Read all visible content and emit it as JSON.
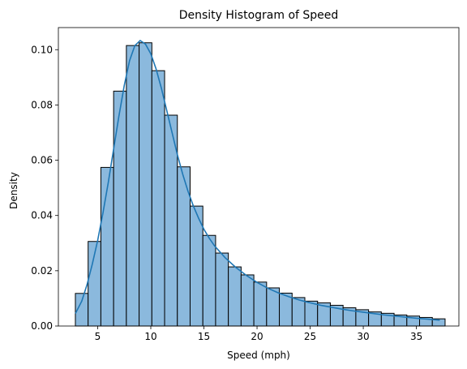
{
  "chart_data": {
    "type": "bar",
    "title": "Density Histogram of Speed",
    "xlabel": "Speed (mph)",
    "ylabel": "Density",
    "xlim": [
      1.3,
      39.0
    ],
    "ylim": [
      0,
      0.108
    ],
    "x_ticks": [
      5,
      10,
      15,
      20,
      25,
      30,
      35
    ],
    "y_ticks": [
      0.0,
      0.02,
      0.04,
      0.06,
      0.08,
      0.1
    ],
    "y_tick_labels": [
      "0.00",
      "0.02",
      "0.04",
      "0.06",
      "0.08",
      "0.10"
    ],
    "grid": false,
    "legend": "none",
    "bin_start": 2.9,
    "bin_width": 1.2,
    "values": [
      0.0118,
      0.0306,
      0.0574,
      0.085,
      0.1015,
      0.1025,
      0.0924,
      0.0763,
      0.0576,
      0.0434,
      0.0328,
      0.0264,
      0.0214,
      0.0185,
      0.0159,
      0.0138,
      0.0119,
      0.0103,
      0.009,
      0.0084,
      0.0075,
      0.0066,
      0.0059,
      0.0051,
      0.0046,
      0.004,
      0.0036,
      0.0031,
      0.0026
    ],
    "kde": {
      "x": [
        2.9,
        3.5,
        4.0,
        4.5,
        5.0,
        5.5,
        6.0,
        6.5,
        7.0,
        7.5,
        8.0,
        8.5,
        9.0,
        9.5,
        10.0,
        10.5,
        11.0,
        11.5,
        12.0,
        12.5,
        13.0,
        13.5,
        14.0,
        14.5,
        15.0,
        15.5,
        16.0,
        17.0,
        18.0,
        19.0,
        20.0,
        21.0,
        22.0,
        23.0,
        24.0,
        25.0,
        26.0,
        27.0,
        28.0,
        29.0,
        30.0,
        31.0,
        32.0,
        33.0,
        34.0,
        35.0,
        36.0,
        37.2
      ],
      "y": [
        0.0045,
        0.009,
        0.015,
        0.0225,
        0.031,
        0.041,
        0.052,
        0.064,
        0.076,
        0.087,
        0.096,
        0.1015,
        0.1033,
        0.102,
        0.0985,
        0.093,
        0.086,
        0.078,
        0.07,
        0.062,
        0.055,
        0.0488,
        0.0435,
        0.039,
        0.035,
        0.0318,
        0.029,
        0.0247,
        0.0212,
        0.0183,
        0.0158,
        0.0137,
        0.012,
        0.0106,
        0.0094,
        0.0084,
        0.0075,
        0.0068,
        0.0061,
        0.0055,
        0.005,
        0.0045,
        0.004,
        0.0036,
        0.0032,
        0.0028,
        0.0025,
        0.0021
      ]
    },
    "bar_color": "#8bb9dd",
    "bar_edge_color": "#000000",
    "line_color": "#1f77b4"
  }
}
